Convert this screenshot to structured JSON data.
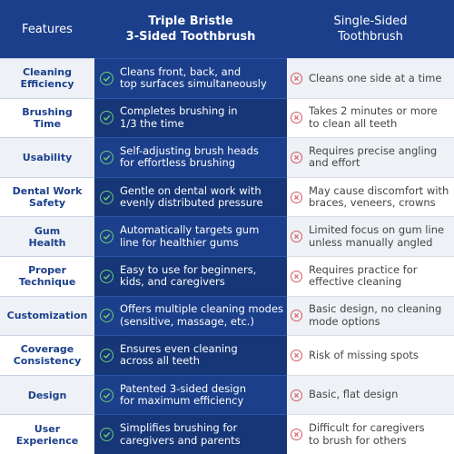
{
  "header": {
    "features": "Features",
    "product": "Triple Bristle\n3-Sided Toothbrush",
    "single": "Single-Sided\nToothbrush"
  },
  "icons": {
    "positive": "check-circle-icon",
    "negative": "x-circle-icon"
  },
  "colors": {
    "navy": "#1b3f8b",
    "check": "#6fcf78",
    "cross": "#d5575e"
  },
  "rows": [
    {
      "feature": "Cleaning\nEfficiency",
      "triple": "Cleans front, back, and\ntop surfaces simultaneously",
      "single": "Cleans one side at a time"
    },
    {
      "feature": "Brushing\nTime",
      "triple": "Completes brushing in\n1/3 the time",
      "single": "Takes 2 minutes or more\nto clean all teeth"
    },
    {
      "feature": "Usability",
      "triple": "Self-adjusting brush heads\nfor effortless brushing",
      "single": "Requires precise angling\nand effort"
    },
    {
      "feature": "Dental Work\nSafety",
      "triple": "Gentle on dental work with\nevenly distributed pressure",
      "single": "May cause discomfort with\nbraces, veneers, crowns"
    },
    {
      "feature": "Gum\nHealth",
      "triple": "Automatically targets gum\nline for healthier gums",
      "single": "Limited focus on gum line\nunless manually angled"
    },
    {
      "feature": "Proper\nTechnique",
      "triple": "Easy to use for beginners,\nkids, and caregivers",
      "single": "Requires practice for\neffective cleaning"
    },
    {
      "feature": "Customization",
      "triple": "Offers multiple cleaning modes\n(sensitive, massage, etc.)",
      "single": "Basic design, no cleaning\nmode options"
    },
    {
      "feature": "Coverage\nConsistency",
      "triple": "Ensures even cleaning\nacross all teeth",
      "single": "Risk of missing spots"
    },
    {
      "feature": "Design",
      "triple": "Patented 3-sided design\nfor maximum efficiency",
      "single": "Basic, flat design"
    },
    {
      "feature": "User\nExperience",
      "triple": "Simplifies brushing for\ncaregivers and parents",
      "single": "Difficult for caregivers\nto brush for others"
    }
  ]
}
